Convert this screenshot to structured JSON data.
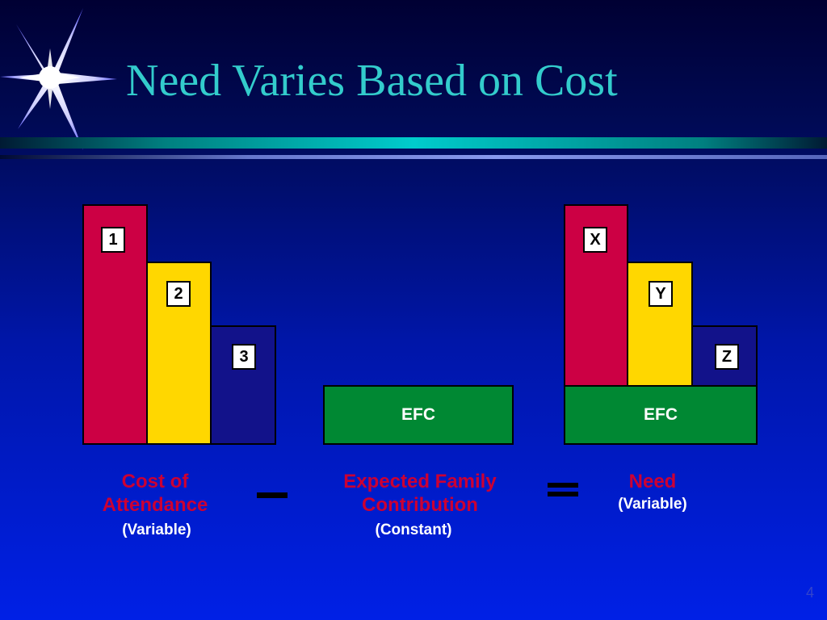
{
  "title": "Need Varies Based on Cost",
  "colors": {
    "red": "#cc0044",
    "yellow": "#ffd700",
    "navy": "#12128a",
    "green": "#008833",
    "title": "#33cccc",
    "caption": "#cc0033"
  },
  "cost_of_attendance": {
    "caption_line1": "Cost of",
    "caption_line2": "Attendance",
    "subtitle": "(Variable)",
    "bars": [
      {
        "label": "1"
      },
      {
        "label": "2"
      },
      {
        "label": "3"
      }
    ]
  },
  "operator_minus": "minus-sign",
  "efc_block": {
    "label": "EFC",
    "caption_line1": "Expected Family",
    "caption_line2": "Contribution",
    "subtitle": "(Constant)"
  },
  "operator_equals": "equals-sign",
  "need": {
    "caption": "Need",
    "subtitle": "(Variable)",
    "efc_label": "EFC",
    "bars": [
      {
        "label": "X"
      },
      {
        "label": "Y"
      },
      {
        "label": "Z"
      }
    ]
  },
  "page_number": "4"
}
